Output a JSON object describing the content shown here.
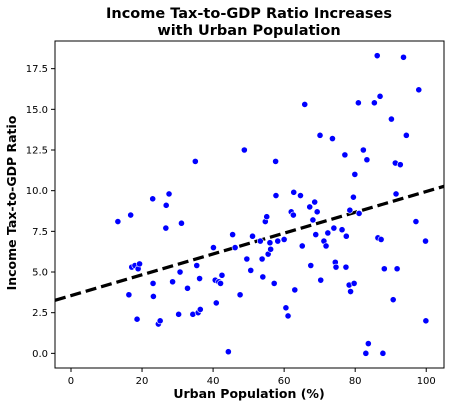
{
  "chart_data": {
    "type": "scatter",
    "title_lines": [
      "Income Tax-to-GDP Ratio Increases",
      "with Urban Population"
    ],
    "xlabel": "Urban Population (%)",
    "ylabel": "Income Tax-to-GDP Ratio",
    "xlim": [
      -4.5,
      105
    ],
    "ylim": [
      -0.9,
      19.2
    ],
    "xticks": [
      0,
      20,
      40,
      60,
      80,
      100
    ],
    "xtick_labels": [
      "0",
      "20",
      "40",
      "60",
      "80",
      "100"
    ],
    "yticks": [
      0.0,
      2.5,
      5.0,
      7.5,
      10.0,
      12.5,
      15.0,
      17.5
    ],
    "ytick_labels": [
      "0.0",
      "2.5",
      "5.0",
      "7.5",
      "10.0",
      "12.5",
      "15.0",
      "17.5"
    ],
    "grid": false,
    "point_color": "#0000ff",
    "trend_color": "#000000",
    "trend_line": {
      "slope": 0.064,
      "intercept": 3.55,
      "style": "dashed"
    },
    "points": [
      {
        "x": 13.2,
        "y": 8.1
      },
      {
        "x": 16.3,
        "y": 3.6
      },
      {
        "x": 16.8,
        "y": 8.5
      },
      {
        "x": 17.1,
        "y": 5.3
      },
      {
        "x": 18.0,
        "y": 5.4
      },
      {
        "x": 18.6,
        "y": 2.1
      },
      {
        "x": 18.9,
        "y": 5.2
      },
      {
        "x": 19.3,
        "y": 5.5
      },
      {
        "x": 23.0,
        "y": 9.5
      },
      {
        "x": 23.1,
        "y": 4.3
      },
      {
        "x": 23.2,
        "y": 3.5
      },
      {
        "x": 24.6,
        "y": 1.8
      },
      {
        "x": 25.1,
        "y": 2.0
      },
      {
        "x": 26.7,
        "y": 7.7
      },
      {
        "x": 26.8,
        "y": 9.1
      },
      {
        "x": 27.6,
        "y": 9.8
      },
      {
        "x": 28.6,
        "y": 4.4
      },
      {
        "x": 30.3,
        "y": 2.4
      },
      {
        "x": 30.7,
        "y": 5.0
      },
      {
        "x": 31.1,
        "y": 8.0
      },
      {
        "x": 32.8,
        "y": 4.0
      },
      {
        "x": 34.3,
        "y": 2.4
      },
      {
        "x": 35.0,
        "y": 11.8
      },
      {
        "x": 35.4,
        "y": 5.4
      },
      {
        "x": 35.8,
        "y": 2.5
      },
      {
        "x": 36.2,
        "y": 4.6
      },
      {
        "x": 36.4,
        "y": 2.7
      },
      {
        "x": 40.1,
        "y": 6.5
      },
      {
        "x": 40.6,
        "y": 4.5
      },
      {
        "x": 40.9,
        "y": 3.1
      },
      {
        "x": 41.6,
        "y": 4.4
      },
      {
        "x": 42.1,
        "y": 4.3
      },
      {
        "x": 42.5,
        "y": 4.8
      },
      {
        "x": 44.3,
        "y": 0.1
      },
      {
        "x": 45.5,
        "y": 7.3
      },
      {
        "x": 46.2,
        "y": 6.5
      },
      {
        "x": 47.6,
        "y": 3.6
      },
      {
        "x": 48.8,
        "y": 12.5
      },
      {
        "x": 49.5,
        "y": 5.8
      },
      {
        "x": 50.6,
        "y": 5.1
      },
      {
        "x": 51.1,
        "y": 7.2
      },
      {
        "x": 53.3,
        "y": 6.9
      },
      {
        "x": 53.8,
        "y": 5.8
      },
      {
        "x": 54.0,
        "y": 4.7
      },
      {
        "x": 54.7,
        "y": 8.1
      },
      {
        "x": 55.1,
        "y": 8.4
      },
      {
        "x": 55.5,
        "y": 6.1
      },
      {
        "x": 56.0,
        "y": 6.8
      },
      {
        "x": 56.2,
        "y": 6.4
      },
      {
        "x": 57.2,
        "y": 4.3
      },
      {
        "x": 57.6,
        "y": 11.8
      },
      {
        "x": 57.7,
        "y": 9.7
      },
      {
        "x": 58.2,
        "y": 6.9
      },
      {
        "x": 60.0,
        "y": 7.0
      },
      {
        "x": 60.5,
        "y": 2.8
      },
      {
        "x": 61.1,
        "y": 2.3
      },
      {
        "x": 62.0,
        "y": 8.7
      },
      {
        "x": 62.6,
        "y": 8.5
      },
      {
        "x": 62.7,
        "y": 9.9
      },
      {
        "x": 63.0,
        "y": 3.9
      },
      {
        "x": 64.6,
        "y": 9.7
      },
      {
        "x": 65.1,
        "y": 6.6
      },
      {
        "x": 65.8,
        "y": 15.3
      },
      {
        "x": 67.2,
        "y": 9.0
      },
      {
        "x": 67.5,
        "y": 5.4
      },
      {
        "x": 68.1,
        "y": 8.2
      },
      {
        "x": 68.6,
        "y": 9.3
      },
      {
        "x": 68.9,
        "y": 7.3
      },
      {
        "x": 69.3,
        "y": 8.7
      },
      {
        "x": 70.1,
        "y": 13.4
      },
      {
        "x": 70.3,
        "y": 4.5
      },
      {
        "x": 71.2,
        "y": 6.9
      },
      {
        "x": 71.8,
        "y": 6.6
      },
      {
        "x": 72.3,
        "y": 7.4
      },
      {
        "x": 73.6,
        "y": 13.2
      },
      {
        "x": 74.0,
        "y": 7.7
      },
      {
        "x": 74.4,
        "y": 5.6
      },
      {
        "x": 74.6,
        "y": 5.3
      },
      {
        "x": 76.3,
        "y": 7.6
      },
      {
        "x": 77.1,
        "y": 12.2
      },
      {
        "x": 77.4,
        "y": 5.3
      },
      {
        "x": 77.5,
        "y": 7.2
      },
      {
        "x": 78.3,
        "y": 4.2
      },
      {
        "x": 78.5,
        "y": 8.8
      },
      {
        "x": 78.7,
        "y": 3.8
      },
      {
        "x": 79.5,
        "y": 9.6
      },
      {
        "x": 79.7,
        "y": 4.3
      },
      {
        "x": 79.9,
        "y": 11.0
      },
      {
        "x": 80.9,
        "y": 15.4
      },
      {
        "x": 81.1,
        "y": 8.6
      },
      {
        "x": 82.3,
        "y": 12.5
      },
      {
        "x": 83.0,
        "y": 0.0
      },
      {
        "x": 83.3,
        "y": 11.9
      },
      {
        "x": 83.7,
        "y": 0.6
      },
      {
        "x": 85.4,
        "y": 15.4
      },
      {
        "x": 86.2,
        "y": 18.3
      },
      {
        "x": 86.4,
        "y": 7.1
      },
      {
        "x": 87.0,
        "y": 15.8
      },
      {
        "x": 87.3,
        "y": 7.0
      },
      {
        "x": 87.8,
        "y": 0.0
      },
      {
        "x": 88.2,
        "y": 5.2
      },
      {
        "x": 90.2,
        "y": 14.4
      },
      {
        "x": 90.7,
        "y": 3.3
      },
      {
        "x": 91.3,
        "y": 11.7
      },
      {
        "x": 91.5,
        "y": 9.8
      },
      {
        "x": 91.8,
        "y": 5.2
      },
      {
        "x": 92.7,
        "y": 11.6
      },
      {
        "x": 93.6,
        "y": 18.2
      },
      {
        "x": 94.4,
        "y": 13.4
      },
      {
        "x": 97.1,
        "y": 8.1
      },
      {
        "x": 97.9,
        "y": 16.2
      },
      {
        "x": 99.8,
        "y": 6.9
      },
      {
        "x": 99.9,
        "y": 2.0
      }
    ]
  }
}
